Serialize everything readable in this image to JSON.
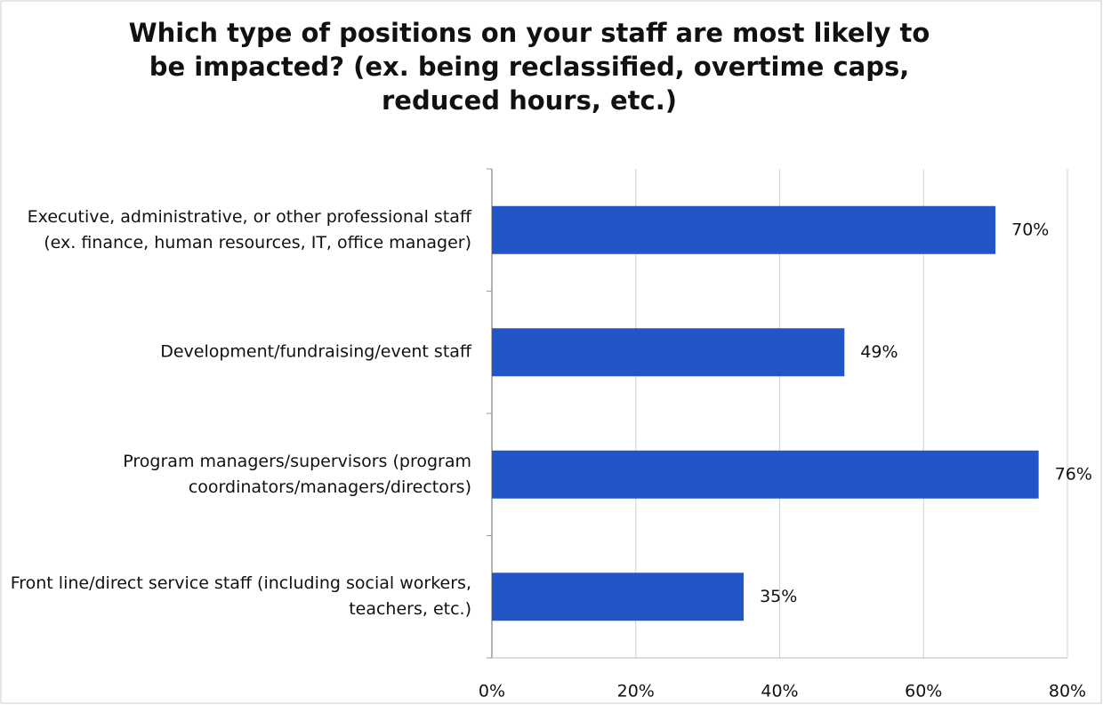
{
  "chart_data": {
    "type": "bar",
    "orientation": "horizontal",
    "title": "Which type of positions on your staff are most likely to be impacted? (ex. being reclassified, overtime caps, reduced hours, etc.)",
    "categories": [
      "Executive, administrative, or other professional staff (ex. finance, human resources, IT, office manager)",
      "Development/fundraising/event staff",
      "Program managers/supervisors (program coordinators/managers/directors)",
      "Front line/direct service staff (including social workers, teachers, etc.)"
    ],
    "values": [
      70,
      49,
      76,
      35
    ],
    "value_labels": [
      "70%",
      "49%",
      "76%",
      "35%"
    ],
    "color": "#2256c6",
    "xlim": [
      0,
      80
    ],
    "xticks": [
      {
        "value": 0,
        "label": "0%"
      },
      {
        "value": 20,
        "label": "20%"
      },
      {
        "value": 40,
        "label": "40%"
      },
      {
        "value": 60,
        "label": "60%"
      },
      {
        "value": 80,
        "label": "80%"
      }
    ],
    "grid": true
  }
}
